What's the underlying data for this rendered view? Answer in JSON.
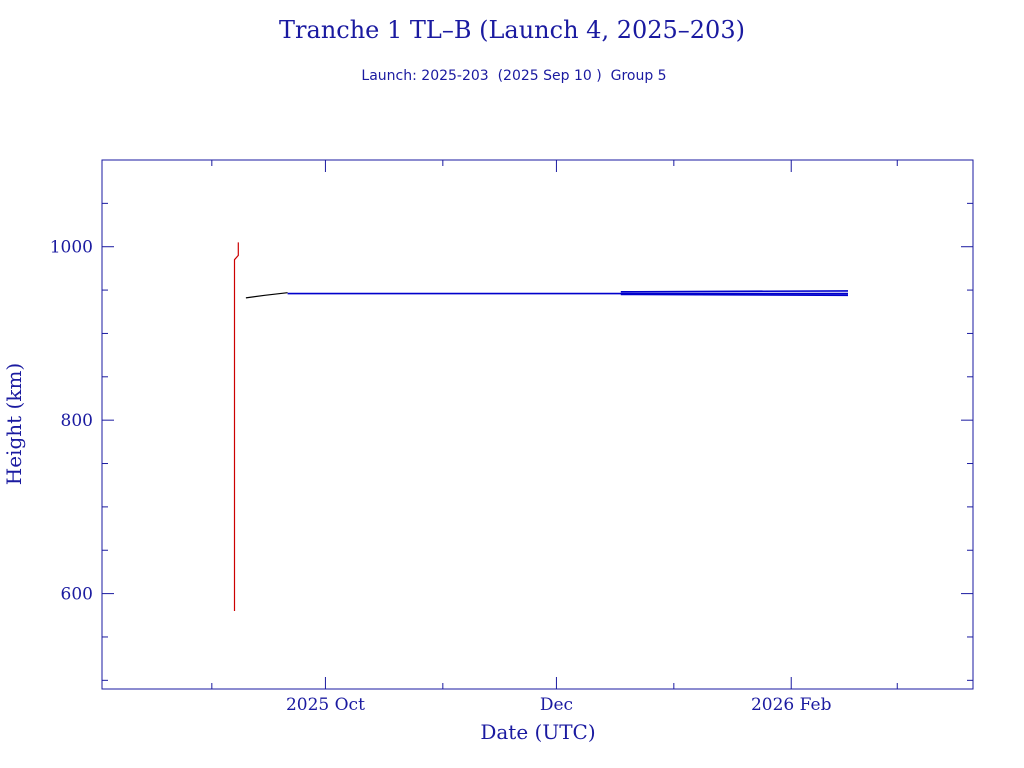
{
  "chart_data": {
    "type": "line",
    "title": "Tranche 1 TL–B (Launch 4, 2025–203)",
    "subtitle": "Launch: 2025-203  (2025 Sep 10 )  Group 5",
    "xlabel": "Date (UTC)",
    "ylabel": "Height (km)",
    "xlim": [
      "2025-08-03",
      "2026-03-21"
    ],
    "ylim": [
      490,
      1100
    ],
    "x_ticks": [
      {
        "date": "2025-10-01",
        "label": "2025 Oct"
      },
      {
        "date": "2025-12-01",
        "label": "Dec"
      },
      {
        "date": "2026-02-01",
        "label": "2026 Feb"
      }
    ],
    "x_minor_ticks": [
      "2025-09-01",
      "2025-11-01",
      "2026-01-01",
      "2026-03-01"
    ],
    "y_ticks": [
      600,
      800,
      1000
    ],
    "y_minor_step": 50,
    "grid": false,
    "colors": {
      "frame": "#1a1aa0",
      "text": "#1a1aa0",
      "red_series": "#cc0000",
      "black_series": "#000000",
      "blue_series": "#0000cc"
    },
    "series": [
      {
        "color": "red",
        "points": [
          [
            "2025-09-07",
            580
          ],
          [
            "2025-09-07",
            985
          ],
          [
            "2025-09-08",
            990
          ],
          [
            "2025-09-08",
            1005
          ]
        ]
      },
      {
        "color": "black",
        "points": [
          [
            "2025-09-10",
            941
          ],
          [
            "2025-09-15",
            944
          ],
          [
            "2025-09-21",
            947
          ]
        ]
      },
      {
        "color": "blue",
        "points": [
          [
            "2025-09-21",
            946
          ],
          [
            "2025-12-18",
            946
          ],
          [
            "2026-02-16",
            946
          ]
        ]
      },
      {
        "color": "blue",
        "points": [
          [
            "2025-12-18",
            948
          ],
          [
            "2026-02-16",
            949
          ]
        ]
      },
      {
        "color": "blue",
        "points": [
          [
            "2025-12-18",
            945
          ],
          [
            "2026-02-16",
            944
          ]
        ]
      }
    ]
  }
}
